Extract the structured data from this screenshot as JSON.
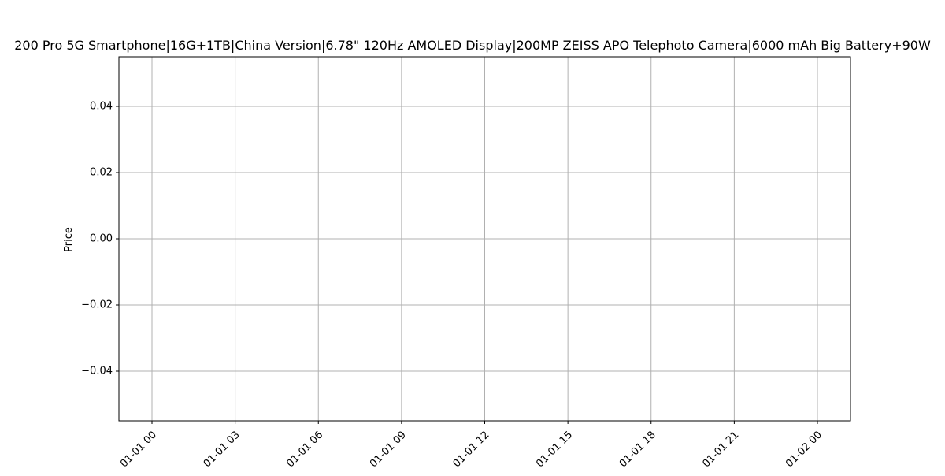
{
  "chart_data": {
    "type": "line",
    "title": "200 Pro 5G Smartphone|16G+1TB|China Version|6.78\" 120Hz AMOLED Display|200MP ZEISS APO Telephoto Camera|6000 mAh Big Battery+90W",
    "xlabel": "",
    "ylabel": "Price",
    "x_ticks": [
      "01-01 00",
      "01-01 03",
      "01-01 06",
      "01-01 09",
      "01-01 12",
      "01-01 15",
      "01-01 18",
      "01-01 21",
      "01-02 00"
    ],
    "y_ticks": [
      "0.04",
      "0.02",
      "0.00",
      "−0.02",
      "−0.04"
    ],
    "y_tick_values": [
      0.04,
      0.02,
      0.0,
      -0.02,
      -0.04
    ],
    "xlim": [
      "01-01 00",
      "01-02 00"
    ],
    "ylim": [
      -0.055,
      0.055
    ],
    "grid": true,
    "series": [],
    "colors": {
      "grid": "#b0b0b0",
      "axis": "#000000",
      "background": "#ffffff"
    }
  }
}
